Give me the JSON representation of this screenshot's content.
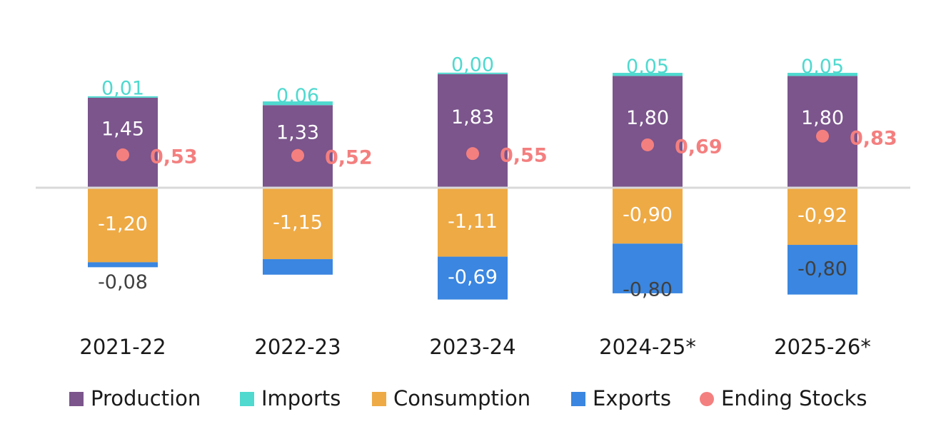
{
  "chart_data": {
    "type": "bar",
    "stacked": true,
    "categories": [
      "2021-22",
      "2022-23",
      "2023-24",
      "2024-25*",
      "2025-26*"
    ],
    "series": [
      {
        "name": "Production",
        "color": "#7b558c",
        "values": [
          1.45,
          1.33,
          1.83,
          1.8,
          1.8
        ],
        "labels": [
          "1,45",
          "1,33",
          "1,83",
          "1,80",
          "1,80"
        ]
      },
      {
        "name": "Imports",
        "color": "#4fd9cf",
        "values": [
          0.01,
          0.06,
          0.0,
          0.05,
          0.05
        ],
        "labels": [
          "0,01",
          "0,06",
          "0,00",
          "0,05",
          "0,05"
        ]
      },
      {
        "name": "Consumption",
        "color": "#eeaa45",
        "values": [
          -1.2,
          -1.15,
          -1.11,
          -0.9,
          -0.92
        ],
        "labels": [
          "-1,20",
          "-1,15",
          "-1,11",
          "-0,90",
          "-0,92"
        ]
      },
      {
        "name": "Exports",
        "color": "#3a86e0",
        "values": [
          -0.08,
          -0.25,
          -0.69,
          -0.8,
          -0.8
        ],
        "labels": [
          "-0,08",
          "",
          "-0,69",
          "-0,80",
          "-0,80"
        ]
      },
      {
        "name": "Ending Stocks",
        "type": "scatter",
        "color": "#f47f7f",
        "values": [
          0.53,
          0.52,
          0.55,
          0.69,
          0.83
        ],
        "labels": [
          "0,53",
          "0,52",
          "0,55",
          "0,69",
          "0,83"
        ]
      }
    ],
    "title": "",
    "xlabel": "",
    "ylabel": "",
    "ylim": [
      -1.85,
      2.5
    ],
    "grid": false,
    "legend": "bottom"
  },
  "colors": {
    "label_dark": "#404040",
    "label_light": "#ffffff",
    "label_imports": "#4fd9cf",
    "zero_line": "#d9d9d9"
  }
}
